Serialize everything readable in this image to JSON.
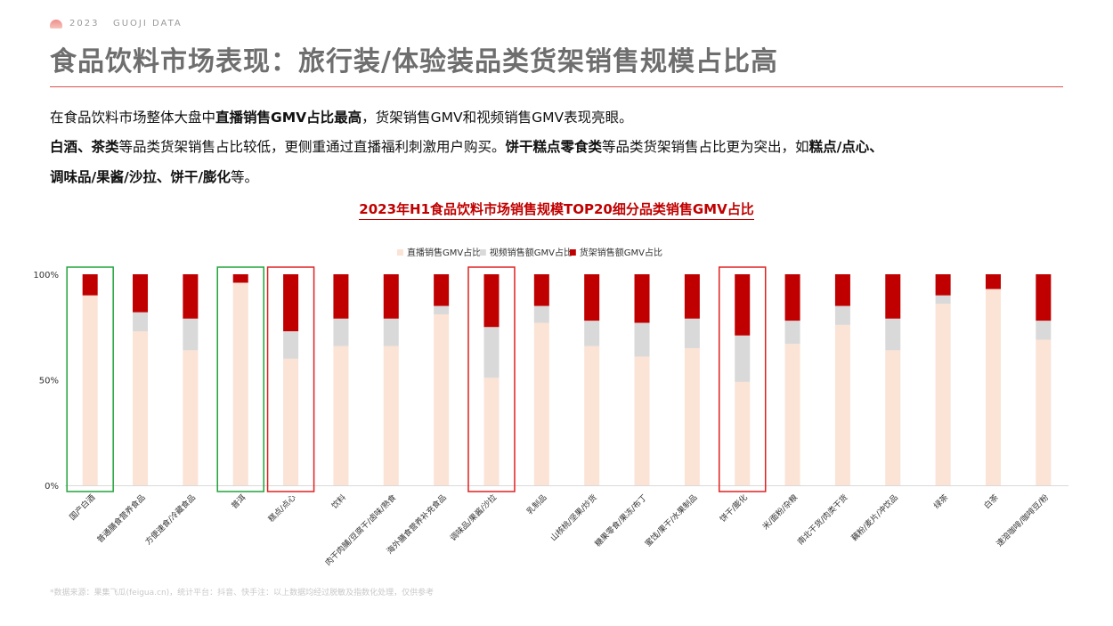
{
  "header": {
    "brand": "2023   GUOJI DATA",
    "title": "食品饮料市场表现：旅行装/体验装品类货架销售规模占比高"
  },
  "paragraphs": [
    [
      {
        "text": "在食品饮料市场整体大盘中",
        "bold": false
      },
      {
        "text": "直播销售GMV占比最高",
        "bold": true
      },
      {
        "text": "，货架销售GMV和视频销售GMV表现亮眼。",
        "bold": false
      }
    ],
    [
      {
        "text": "白酒、茶类",
        "bold": true
      },
      {
        "text": "等品类货架销售占比较低，更侧重通过直播福利刺激用户购买。",
        "bold": false
      },
      {
        "text": "饼干糕点零食类",
        "bold": true
      },
      {
        "text": "等品类货架销售占比更为突出，如",
        "bold": false
      },
      {
        "text": "糕点/点心、",
        "bold": true
      }
    ],
    [
      {
        "text": "调味品/果酱/沙拉、饼干/膨化",
        "bold": true
      },
      {
        "text": "等。",
        "bold": false
      }
    ]
  ],
  "chart_title": "2023年H1食品饮料市场销售规模TOP20细分品类销售GMV占比",
  "footer": "*数据来源：果集飞瓜(feigua.cn)，统计平台：抖音、快手注：以上数据均经过脱敏及指数化处理，仅供参考",
  "chart_data": {
    "type": "bar",
    "stacked": true,
    "categories": [
      "国产白酒",
      "普通膳食营养食品",
      "方便速食/冷藏食品",
      "普洱",
      "糕点/点心",
      "饮料",
      "肉干肉脯/豆腐干/卤味/熟食",
      "海外膳食营养补充食品",
      "调味品/果酱/沙拉",
      "乳制品",
      "山核桃/坚果/炒货",
      "糖果零食/果冻/布丁",
      "蜜饯/果干/水果制品",
      "饼干/膨化",
      "米/面粉/杂粮",
      "南北干货/肉类干货",
      "藕粉/麦片/冲饮品",
      "绿茶",
      "白茶",
      "速溶咖啡/咖啡豆/粉"
    ],
    "series": [
      {
        "name": "直播销售GMV占比",
        "color": "#fbe3d6",
        "values": [
          90,
          73,
          64,
          96,
          60,
          66,
          66,
          81,
          51,
          77,
          66,
          61,
          65,
          49,
          67,
          76,
          64,
          86,
          93,
          69
        ]
      },
      {
        "name": "视频销售额GMV占比",
        "color": "#d9d9d9",
        "values": [
          0,
          9,
          15,
          0,
          13,
          13,
          13,
          4,
          24,
          8,
          12,
          16,
          14,
          22,
          11,
          9,
          15,
          4,
          0,
          9
        ]
      },
      {
        "name": "货架销售额GMV占比",
        "color": "#c00000",
        "values": [
          10,
          18,
          21,
          4,
          27,
          21,
          21,
          15,
          25,
          15,
          22,
          23,
          21,
          29,
          22,
          15,
          21,
          10,
          7,
          22
        ]
      }
    ],
    "yticks": [
      "0%",
      "50%",
      "100%"
    ],
    "ylim": [
      0,
      100
    ],
    "legend_position": "top-center",
    "highlight_green": [
      0,
      3
    ],
    "highlight_red": [
      4,
      8,
      13
    ]
  }
}
